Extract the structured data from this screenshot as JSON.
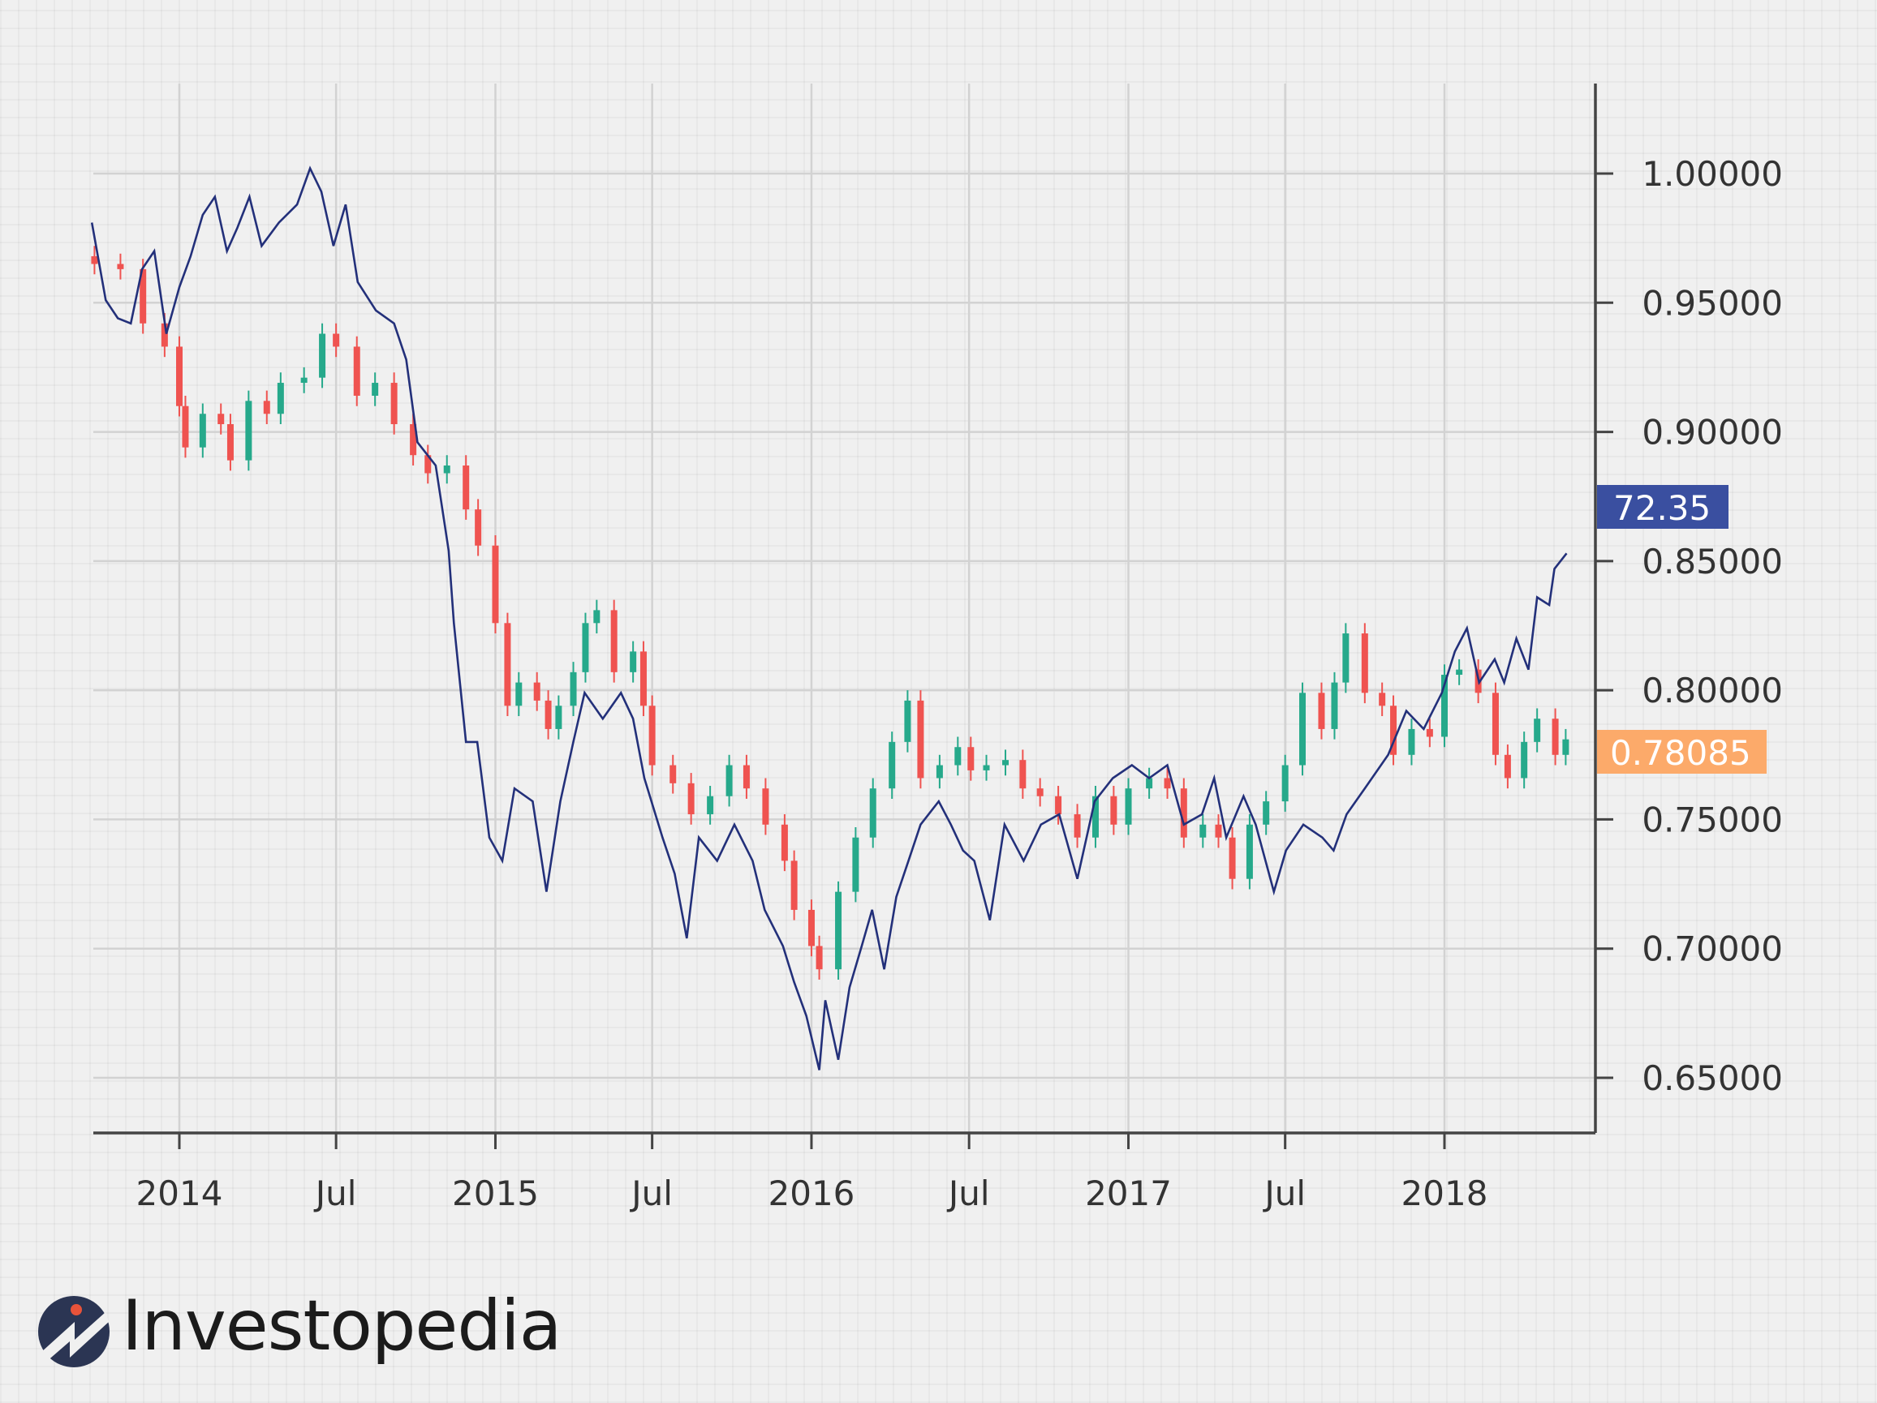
{
  "chart_data": {
    "type": "candlestick+line",
    "title": "",
    "xlabel": "",
    "ylabel": "",
    "ylim": [
      0.63,
      1.035
    ],
    "y_ticks": [
      "1.00000",
      "0.95000",
      "0.90000",
      "0.85000",
      "0.80000",
      "0.75000",
      "0.70000",
      "0.65000"
    ],
    "y_tick_values": [
      1.0,
      0.95,
      0.9,
      0.85,
      0.8,
      0.75,
      0.7,
      0.65
    ],
    "x_ticks": [
      {
        "label": "2014",
        "date": "2014-01-01"
      },
      {
        "label": "Jul",
        "date": "2014-07-01"
      },
      {
        "label": "2015",
        "date": "2015-01-01"
      },
      {
        "label": "Jul",
        "date": "2015-07-01"
      },
      {
        "label": "2016",
        "date": "2016-01-01"
      },
      {
        "label": "Jul",
        "date": "2016-07-01"
      },
      {
        "label": "2017",
        "date": "2017-01-01"
      },
      {
        "label": "Jul",
        "date": "2017-07-01"
      },
      {
        "label": "2018",
        "date": "2018-01-01"
      }
    ],
    "grid": true,
    "y_axis_side": "right",
    "colors": {
      "up": "#26a98b",
      "down": "#ef5350",
      "line": "#23307a",
      "line_badge": "#3a4fa0",
      "candle_badge": "#fcaa6a"
    },
    "last_values": {
      "line": "72.35",
      "candles": "0.78085"
    },
    "candle_closes": [
      [
        "2013-09-25",
        0.965
      ],
      [
        "2013-10-25",
        0.963
      ],
      [
        "2013-11-20",
        0.942
      ],
      [
        "2013-12-15",
        0.933
      ],
      [
        "2014-01-01",
        0.91
      ],
      [
        "2014-01-08",
        0.894
      ],
      [
        "2014-01-28",
        0.907
      ],
      [
        "2014-02-18",
        0.903
      ],
      [
        "2014-03-01",
        0.889
      ],
      [
        "2014-03-22",
        0.912
      ],
      [
        "2014-04-12",
        0.907
      ],
      [
        "2014-04-28",
        0.919
      ],
      [
        "2014-05-25",
        0.921
      ],
      [
        "2014-06-15",
        0.938
      ],
      [
        "2014-07-01",
        0.933
      ],
      [
        "2014-07-25",
        0.914
      ],
      [
        "2014-08-15",
        0.919
      ],
      [
        "2014-09-06",
        0.903
      ],
      [
        "2014-09-28",
        0.891
      ],
      [
        "2014-10-15",
        0.884
      ],
      [
        "2014-11-06",
        0.887
      ],
      [
        "2014-11-28",
        0.87
      ],
      [
        "2014-12-12",
        0.856
      ],
      [
        "2015-01-01",
        0.826
      ],
      [
        "2015-01-15",
        0.794
      ],
      [
        "2015-01-28",
        0.803
      ],
      [
        "2015-02-18",
        0.796
      ],
      [
        "2015-03-03",
        0.785
      ],
      [
        "2015-03-15",
        0.794
      ],
      [
        "2015-04-01",
        0.807
      ],
      [
        "2015-04-15",
        0.826
      ],
      [
        "2015-04-28",
        0.831
      ],
      [
        "2015-05-18",
        0.807
      ],
      [
        "2015-06-09",
        0.815
      ],
      [
        "2015-06-21",
        0.794
      ],
      [
        "2015-07-01",
        0.771
      ],
      [
        "2015-07-25",
        0.764
      ],
      [
        "2015-08-15",
        0.752
      ],
      [
        "2015-09-06",
        0.759
      ],
      [
        "2015-09-28",
        0.771
      ],
      [
        "2015-10-18",
        0.762
      ],
      [
        "2015-11-09",
        0.748
      ],
      [
        "2015-12-01",
        0.734
      ],
      [
        "2015-12-12",
        0.715
      ],
      [
        "2016-01-01",
        0.701
      ],
      [
        "2016-01-10",
        0.692
      ],
      [
        "2016-02-01",
        0.722
      ],
      [
        "2016-02-21",
        0.743
      ],
      [
        "2016-03-12",
        0.762
      ],
      [
        "2016-04-03",
        0.78
      ],
      [
        "2016-04-21",
        0.796
      ],
      [
        "2016-05-06",
        0.766
      ],
      [
        "2016-05-28",
        0.771
      ],
      [
        "2016-06-18",
        0.778
      ],
      [
        "2016-07-03",
        0.769
      ],
      [
        "2016-07-21",
        0.771
      ],
      [
        "2016-08-12",
        0.773
      ],
      [
        "2016-09-01",
        0.762
      ],
      [
        "2016-09-21",
        0.759
      ],
      [
        "2016-10-12",
        0.752
      ],
      [
        "2016-11-03",
        0.743
      ],
      [
        "2016-11-24",
        0.759
      ],
      [
        "2016-12-15",
        0.748
      ],
      [
        "2017-01-01",
        0.762
      ],
      [
        "2017-01-25",
        0.766
      ],
      [
        "2017-02-15",
        0.762
      ],
      [
        "2017-03-06",
        0.743
      ],
      [
        "2017-03-28",
        0.748
      ],
      [
        "2017-04-15",
        0.743
      ],
      [
        "2017-05-01",
        0.727
      ],
      [
        "2017-05-21",
        0.748
      ],
      [
        "2017-06-09",
        0.757
      ],
      [
        "2017-07-01",
        0.771
      ],
      [
        "2017-07-21",
        0.799
      ],
      [
        "2017-08-12",
        0.785
      ],
      [
        "2017-08-27",
        0.803
      ],
      [
        "2017-09-09",
        0.822
      ],
      [
        "2017-10-01",
        0.799
      ],
      [
        "2017-10-21",
        0.794
      ],
      [
        "2017-11-03",
        0.775
      ],
      [
        "2017-11-24",
        0.785
      ],
      [
        "2017-12-15",
        0.782
      ],
      [
        "2018-01-01",
        0.806
      ],
      [
        "2018-01-18",
        0.808
      ],
      [
        "2018-02-09",
        0.799
      ],
      [
        "2018-03-01",
        0.775
      ],
      [
        "2018-03-15",
        0.766
      ],
      [
        "2018-04-03",
        0.78
      ],
      [
        "2018-04-18",
        0.789
      ],
      [
        "2018-05-09",
        0.775
      ],
      [
        "2018-05-21",
        0.781
      ]
    ],
    "line_points": [
      [
        "2013-09-22",
        0.981
      ],
      [
        "2013-10-08",
        0.951
      ],
      [
        "2013-10-22",
        0.944
      ],
      [
        "2013-11-06",
        0.942
      ],
      [
        "2013-11-19",
        0.963
      ],
      [
        "2013-12-03",
        0.97
      ],
      [
        "2013-12-17",
        0.938
      ],
      [
        "2014-01-01",
        0.956
      ],
      [
        "2014-01-14",
        0.968
      ],
      [
        "2014-01-28",
        0.984
      ],
      [
        "2014-02-11",
        0.991
      ],
      [
        "2014-02-25",
        0.97
      ],
      [
        "2014-03-09",
        0.979
      ],
      [
        "2014-03-23",
        0.991
      ],
      [
        "2014-04-06",
        0.972
      ],
      [
        "2014-04-26",
        0.981
      ],
      [
        "2014-05-17",
        0.988
      ],
      [
        "2014-06-01",
        1.002
      ],
      [
        "2014-06-14",
        0.993
      ],
      [
        "2014-06-28",
        0.972
      ],
      [
        "2014-07-12",
        0.988
      ],
      [
        "2014-07-26",
        0.958
      ],
      [
        "2014-08-16",
        0.947
      ],
      [
        "2014-09-06",
        0.942
      ],
      [
        "2014-09-20",
        0.928
      ],
      [
        "2014-10-03",
        0.896
      ],
      [
        "2014-10-24",
        0.887
      ],
      [
        "2014-11-08",
        0.854
      ],
      [
        "2014-11-14",
        0.826
      ],
      [
        "2014-11-28",
        0.78
      ],
      [
        "2014-12-11",
        0.78
      ],
      [
        "2014-12-25",
        0.743
      ],
      [
        "2015-01-09",
        0.734
      ],
      [
        "2015-01-23",
        0.762
      ],
      [
        "2015-02-13",
        0.757
      ],
      [
        "2015-03-01",
        0.722
      ],
      [
        "2015-03-17",
        0.757
      ],
      [
        "2015-04-01",
        0.78
      ],
      [
        "2015-04-14",
        0.799
      ],
      [
        "2015-05-05",
        0.789
      ],
      [
        "2015-05-26",
        0.799
      ],
      [
        "2015-06-09",
        0.789
      ],
      [
        "2015-06-22",
        0.766
      ],
      [
        "2015-07-13",
        0.743
      ],
      [
        "2015-07-27",
        0.729
      ],
      [
        "2015-08-10",
        0.704
      ],
      [
        "2015-08-24",
        0.743
      ],
      [
        "2015-09-14",
        0.734
      ],
      [
        "2015-10-04",
        0.748
      ],
      [
        "2015-10-25",
        0.734
      ],
      [
        "2015-11-08",
        0.715
      ],
      [
        "2015-11-29",
        0.701
      ],
      [
        "2015-12-12",
        0.687
      ],
      [
        "2015-12-26",
        0.674
      ],
      [
        "2016-01-10",
        0.653
      ],
      [
        "2016-01-17",
        0.68
      ],
      [
        "2016-02-01",
        0.657
      ],
      [
        "2016-02-14",
        0.685
      ],
      [
        "2016-02-28",
        0.701
      ],
      [
        "2016-03-11",
        0.715
      ],
      [
        "2016-03-25",
        0.692
      ],
      [
        "2016-04-08",
        0.72
      ],
      [
        "2016-04-22",
        0.734
      ],
      [
        "2016-05-06",
        0.748
      ],
      [
        "2016-05-27",
        0.757
      ],
      [
        "2016-06-10",
        0.748
      ],
      [
        "2016-06-24",
        0.738
      ],
      [
        "2016-07-07",
        0.734
      ],
      [
        "2016-07-25",
        0.711
      ],
      [
        "2016-08-11",
        0.748
      ],
      [
        "2016-09-02",
        0.734
      ],
      [
        "2016-09-22",
        0.748
      ],
      [
        "2016-10-13",
        0.752
      ],
      [
        "2016-11-03",
        0.727
      ],
      [
        "2016-11-23",
        0.757
      ],
      [
        "2016-12-14",
        0.766
      ],
      [
        "2017-01-05",
        0.771
      ],
      [
        "2017-01-25",
        0.766
      ],
      [
        "2017-02-15",
        0.771
      ],
      [
        "2017-03-06",
        0.748
      ],
      [
        "2017-03-27",
        0.752
      ],
      [
        "2017-04-10",
        0.766
      ],
      [
        "2017-04-24",
        0.743
      ],
      [
        "2017-05-14",
        0.759
      ],
      [
        "2017-05-28",
        0.748
      ],
      [
        "2017-06-18",
        0.722
      ],
      [
        "2017-07-02",
        0.738
      ],
      [
        "2017-07-22",
        0.748
      ],
      [
        "2017-08-13",
        0.743
      ],
      [
        "2017-08-26",
        0.738
      ],
      [
        "2017-09-10",
        0.752
      ],
      [
        "2017-10-01",
        0.762
      ],
      [
        "2017-10-28",
        0.775
      ],
      [
        "2017-11-18",
        0.792
      ],
      [
        "2017-12-08",
        0.785
      ],
      [
        "2017-12-29",
        0.799
      ],
      [
        "2018-01-13",
        0.815
      ],
      [
        "2018-01-27",
        0.824
      ],
      [
        "2018-02-10",
        0.803
      ],
      [
        "2018-02-28",
        0.812
      ],
      [
        "2018-03-11",
        0.803
      ],
      [
        "2018-03-25",
        0.82
      ],
      [
        "2018-04-08",
        0.808
      ],
      [
        "2018-04-18",
        0.836
      ],
      [
        "2018-05-02",
        0.833
      ],
      [
        "2018-05-08",
        0.847
      ],
      [
        "2018-05-22",
        0.853
      ]
    ]
  },
  "brand": {
    "name": "Investopedia"
  }
}
